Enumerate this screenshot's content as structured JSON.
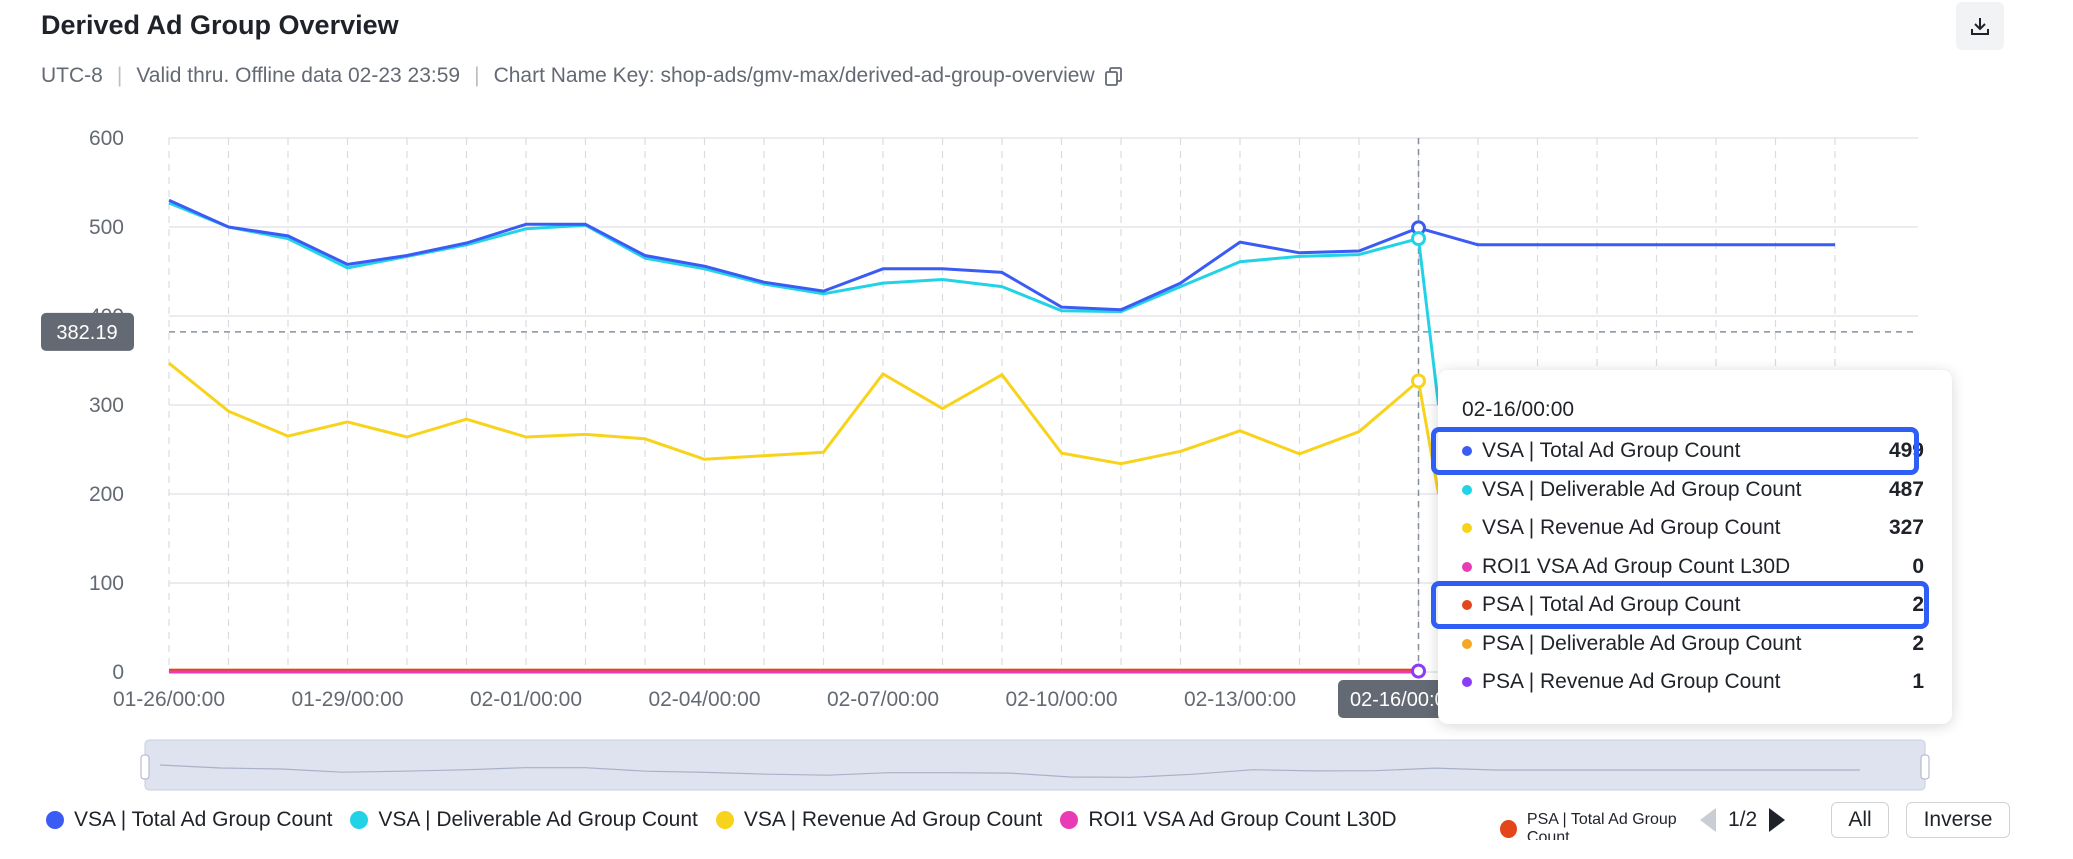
{
  "header": {
    "title": "Derived Ad Group Overview",
    "timezone": "UTC-8",
    "validity": "Valid thru. Offline data 02-23 23:59",
    "chart_name_key": "Chart Name Key: shop-ads/gmv-max/derived-ad-group-overview"
  },
  "crosshair": {
    "y_label": "382.19",
    "x_label": "02-16/00:00"
  },
  "tooltip": {
    "date": "02-16/00:00",
    "rows": [
      {
        "name": "VSA | Total Ad Group Count",
        "value": "499",
        "color": "#3b5bf5",
        "highlighted": true
      },
      {
        "name": "VSA | Deliverable Ad Group Count",
        "value": "487",
        "color": "#22d3e6",
        "highlighted": false
      },
      {
        "name": "VSA | Revenue Ad Group Count",
        "value": "327",
        "color": "#f8d31c",
        "highlighted": false
      },
      {
        "name": "ROI1 VSA Ad Group Count L30D",
        "value": "0",
        "color": "#e83bb5",
        "highlighted": false
      },
      {
        "name": "PSA | Total Ad Group Count",
        "value": "2",
        "color": "#e4461b",
        "highlighted": true
      },
      {
        "name": "PSA | Deliverable Ad Group Count",
        "value": "2",
        "color": "#f5a623",
        "highlighted": false
      },
      {
        "name": "PSA | Revenue Ad Group Count",
        "value": "1",
        "color": "#8b3cf7",
        "highlighted": false
      }
    ]
  },
  "legend": {
    "items": [
      {
        "name": "VSA | Total Ad Group Count",
        "color": "#3b5bf5"
      },
      {
        "name": "VSA | Deliverable Ad Group Count",
        "color": "#22d3e6"
      },
      {
        "name": "VSA | Revenue Ad Group Count",
        "color": "#f8d31c"
      },
      {
        "name": "ROI1 VSA Ad Group Count L30D",
        "color": "#e83bb5"
      }
    ],
    "clipped_item": {
      "name": "PSA | Total Ad Group Count",
      "color": "#e4461b"
    },
    "page": "1/2",
    "all_label": "All",
    "inverse_label": "Inverse"
  },
  "chart_data": {
    "type": "line",
    "title": "Derived Ad Group Overview",
    "xlabel": "",
    "ylabel": "",
    "ylim": [
      0,
      600
    ],
    "y_ticks": [
      0,
      100,
      200,
      300,
      400,
      500,
      600
    ],
    "x_tick_labels": [
      "01-26/00:00",
      "01-29/00:00",
      "02-01/00:00",
      "02-04/00:00",
      "02-07/00:00",
      "02-10/00:00",
      "02-13/00:00",
      "02-16/00:00"
    ],
    "x": [
      "01-26",
      "01-27",
      "01-28",
      "01-29",
      "01-30",
      "01-31",
      "02-01",
      "02-02",
      "02-03",
      "02-04",
      "02-05",
      "02-06",
      "02-07",
      "02-08",
      "02-09",
      "02-10",
      "02-11",
      "02-12",
      "02-13",
      "02-14",
      "02-15",
      "02-16",
      "02-17",
      "02-18",
      "02-19",
      "02-20",
      "02-21",
      "02-22",
      "02-23"
    ],
    "grid": true,
    "legend_position": "bottom",
    "series": [
      {
        "name": "VSA | Total Ad Group Count",
        "color": "#3b5bf5",
        "values": [
          530,
          500,
          490,
          458,
          468,
          482,
          503,
          503,
          468,
          456,
          438,
          428,
          453,
          453,
          449,
          410,
          407,
          437,
          483,
          471,
          473,
          499,
          480,
          480,
          480,
          480,
          480,
          480,
          480
        ]
      },
      {
        "name": "VSA | Deliverable Ad Group Count",
        "color": "#22d3e6",
        "values": [
          527,
          500,
          487,
          454,
          467,
          480,
          498,
          502,
          465,
          453,
          436,
          425,
          437,
          441,
          433,
          406,
          405,
          433,
          461,
          467,
          469,
          487,
          null,
          null,
          null,
          null,
          null,
          null,
          null
        ]
      },
      {
        "name": "VSA | Revenue Ad Group Count",
        "color": "#f8d31c",
        "values": [
          347,
          293,
          265,
          281,
          264,
          284,
          264,
          267,
          262,
          239,
          243,
          247,
          335,
          296,
          334,
          246,
          234,
          248,
          271,
          245,
          270,
          327,
          null,
          null,
          null,
          null,
          null,
          null,
          null
        ]
      },
      {
        "name": "ROI1 VSA Ad Group Count L30D",
        "color": "#e83bb5",
        "values": [
          0,
          0,
          0,
          0,
          0,
          0,
          0,
          0,
          0,
          0,
          0,
          0,
          0,
          0,
          0,
          0,
          0,
          0,
          0,
          0,
          0,
          0,
          null,
          null,
          null,
          null,
          null,
          null,
          null
        ]
      },
      {
        "name": "PSA | Total Ad Group Count",
        "color": "#e4461b",
        "values": [
          2,
          2,
          2,
          2,
          2,
          2,
          2,
          2,
          2,
          2,
          2,
          2,
          2,
          2,
          2,
          2,
          2,
          2,
          2,
          2,
          2,
          2,
          null,
          null,
          null,
          null,
          null,
          null,
          null
        ]
      },
      {
        "name": "PSA | Deliverable Ad Group Count",
        "color": "#f5a623",
        "values": [
          2,
          2,
          2,
          2,
          2,
          2,
          2,
          2,
          2,
          2,
          2,
          2,
          2,
          2,
          2,
          2,
          2,
          2,
          2,
          2,
          2,
          2,
          null,
          null,
          null,
          null,
          null,
          null,
          null
        ]
      },
      {
        "name": "PSA | Revenue Ad Group Count",
        "color": "#8b3cf7",
        "values": [
          1,
          1,
          1,
          1,
          1,
          1,
          1,
          1,
          1,
          1,
          1,
          1,
          1,
          1,
          1,
          1,
          1,
          1,
          1,
          1,
          1,
          1,
          null,
          null,
          null,
          null,
          null,
          null,
          null
        ]
      }
    ]
  }
}
